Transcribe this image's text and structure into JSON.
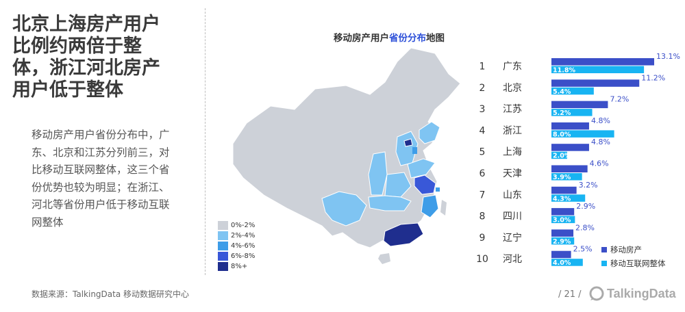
{
  "headline": [
    "北京上海房产用户",
    "比例约两倍于整",
    "体，浙江河北房产",
    "用户低于整体"
  ],
  "body": [
    "移动房产用户省份分布中，广",
    "东、北京和江苏分列前三，对",
    "比移动互联网整体，这三个省",
    "份优势也较为明显；在浙江、",
    "河北等省份用户低于移动互联",
    "网整体"
  ],
  "source": "数据来源：TalkingData 移动数据研究中心",
  "map": {
    "title_prefix": "移动房产用户",
    "title_highlight": "省份分布",
    "title_suffix": "地图",
    "legend": [
      {
        "label": "0%-2%",
        "color": "#cdd1d8"
      },
      {
        "label": "2%-4%",
        "color": "#7fc4f2"
      },
      {
        "label": "4%-6%",
        "color": "#3e9de8"
      },
      {
        "label": "6%-8%",
        "color": "#3958d8"
      },
      {
        "label": "8%+",
        "color": "#1f2e8e"
      }
    ]
  },
  "chart_data": {
    "type": "bar",
    "orientation": "horizontal",
    "title": "",
    "categories": [
      "广东",
      "北京",
      "江苏",
      "浙江",
      "上海",
      "天津",
      "山东",
      "四川",
      "辽宁",
      "河北"
    ],
    "ranks": [
      "1",
      "2",
      "3",
      "4",
      "5",
      "6",
      "7",
      "8",
      "9",
      "10"
    ],
    "series": [
      {
        "name": "移动房产",
        "color": "#3b4fc8",
        "values": [
          13.1,
          11.2,
          7.2,
          4.8,
          4.8,
          4.6,
          3.2,
          2.9,
          2.8,
          2.5
        ],
        "labels": [
          "13.1%",
          "11.2%",
          "7.2%",
          "4.8%",
          "4.8%",
          "4.6%",
          "3.2%",
          "2.9%",
          "2.8%",
          "2.5%"
        ]
      },
      {
        "name": "移动互联网整体",
        "color": "#18b4f2",
        "values": [
          11.8,
          5.4,
          5.2,
          8.0,
          2.0,
          3.9,
          4.3,
          3.0,
          2.9,
          4.0
        ],
        "labels": [
          "11.8%",
          "5.4%",
          "5.2%",
          "8.0%",
          "2.0%",
          "3.9%",
          "4.3%",
          "3.0%",
          "2.9%",
          "4.0%"
        ]
      }
    ],
    "xlim": [
      0,
      13.1
    ],
    "grid": false,
    "legend_position": "bottom-right"
  },
  "page_number": "/ 21 /",
  "logo": "TalkingData"
}
